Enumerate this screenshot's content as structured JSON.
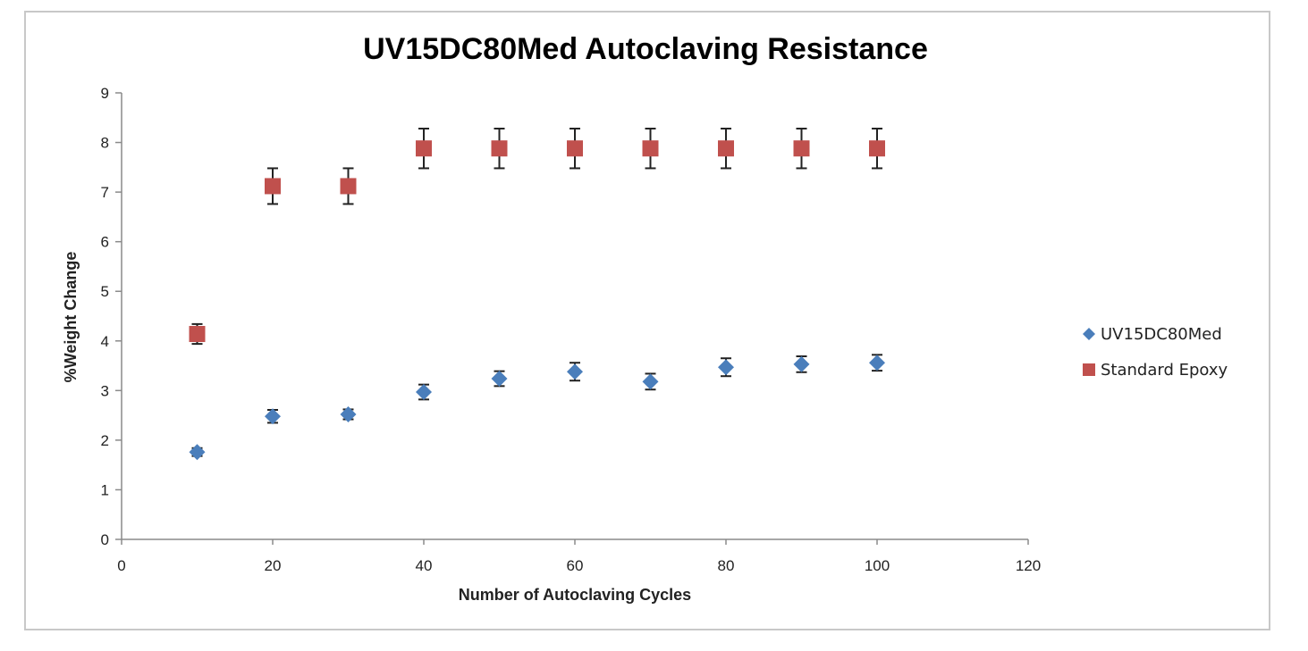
{
  "chart_data": {
    "type": "scatter",
    "title": "UV15DC80Med Autoclaving Resistance",
    "xlabel": "Number of Autoclaving  Cycles",
    "ylabel": "%Weight Change",
    "xlim": [
      0,
      120
    ],
    "ylim": [
      0,
      9
    ],
    "x_ticks": [
      0,
      20,
      40,
      60,
      80,
      100,
      120
    ],
    "y_ticks": [
      0,
      1,
      2,
      3,
      4,
      5,
      6,
      7,
      8,
      9
    ],
    "grid": false,
    "legend_position": "right",
    "series": [
      {
        "name": "UV15DC80Med",
        "marker": "diamond",
        "color": "#4a7ebb",
        "x": [
          10,
          20,
          30,
          40,
          50,
          60,
          70,
          80,
          90,
          100
        ],
        "y": [
          1.76,
          2.48,
          2.52,
          2.97,
          3.24,
          3.38,
          3.18,
          3.47,
          3.53,
          3.56
        ],
        "error": [
          0.08,
          0.13,
          0.1,
          0.15,
          0.15,
          0.18,
          0.16,
          0.18,
          0.16,
          0.16
        ]
      },
      {
        "name": "Standard Epoxy",
        "marker": "square",
        "color": "#c0504d",
        "x": [
          10,
          20,
          30,
          40,
          50,
          60,
          70,
          80,
          90,
          100
        ],
        "y": [
          4.14,
          7.12,
          7.12,
          7.88,
          7.88,
          7.88,
          7.88,
          7.88,
          7.88,
          7.88
        ],
        "error": [
          0.2,
          0.36,
          0.36,
          0.4,
          0.4,
          0.4,
          0.4,
          0.4,
          0.4,
          0.4
        ]
      }
    ]
  }
}
